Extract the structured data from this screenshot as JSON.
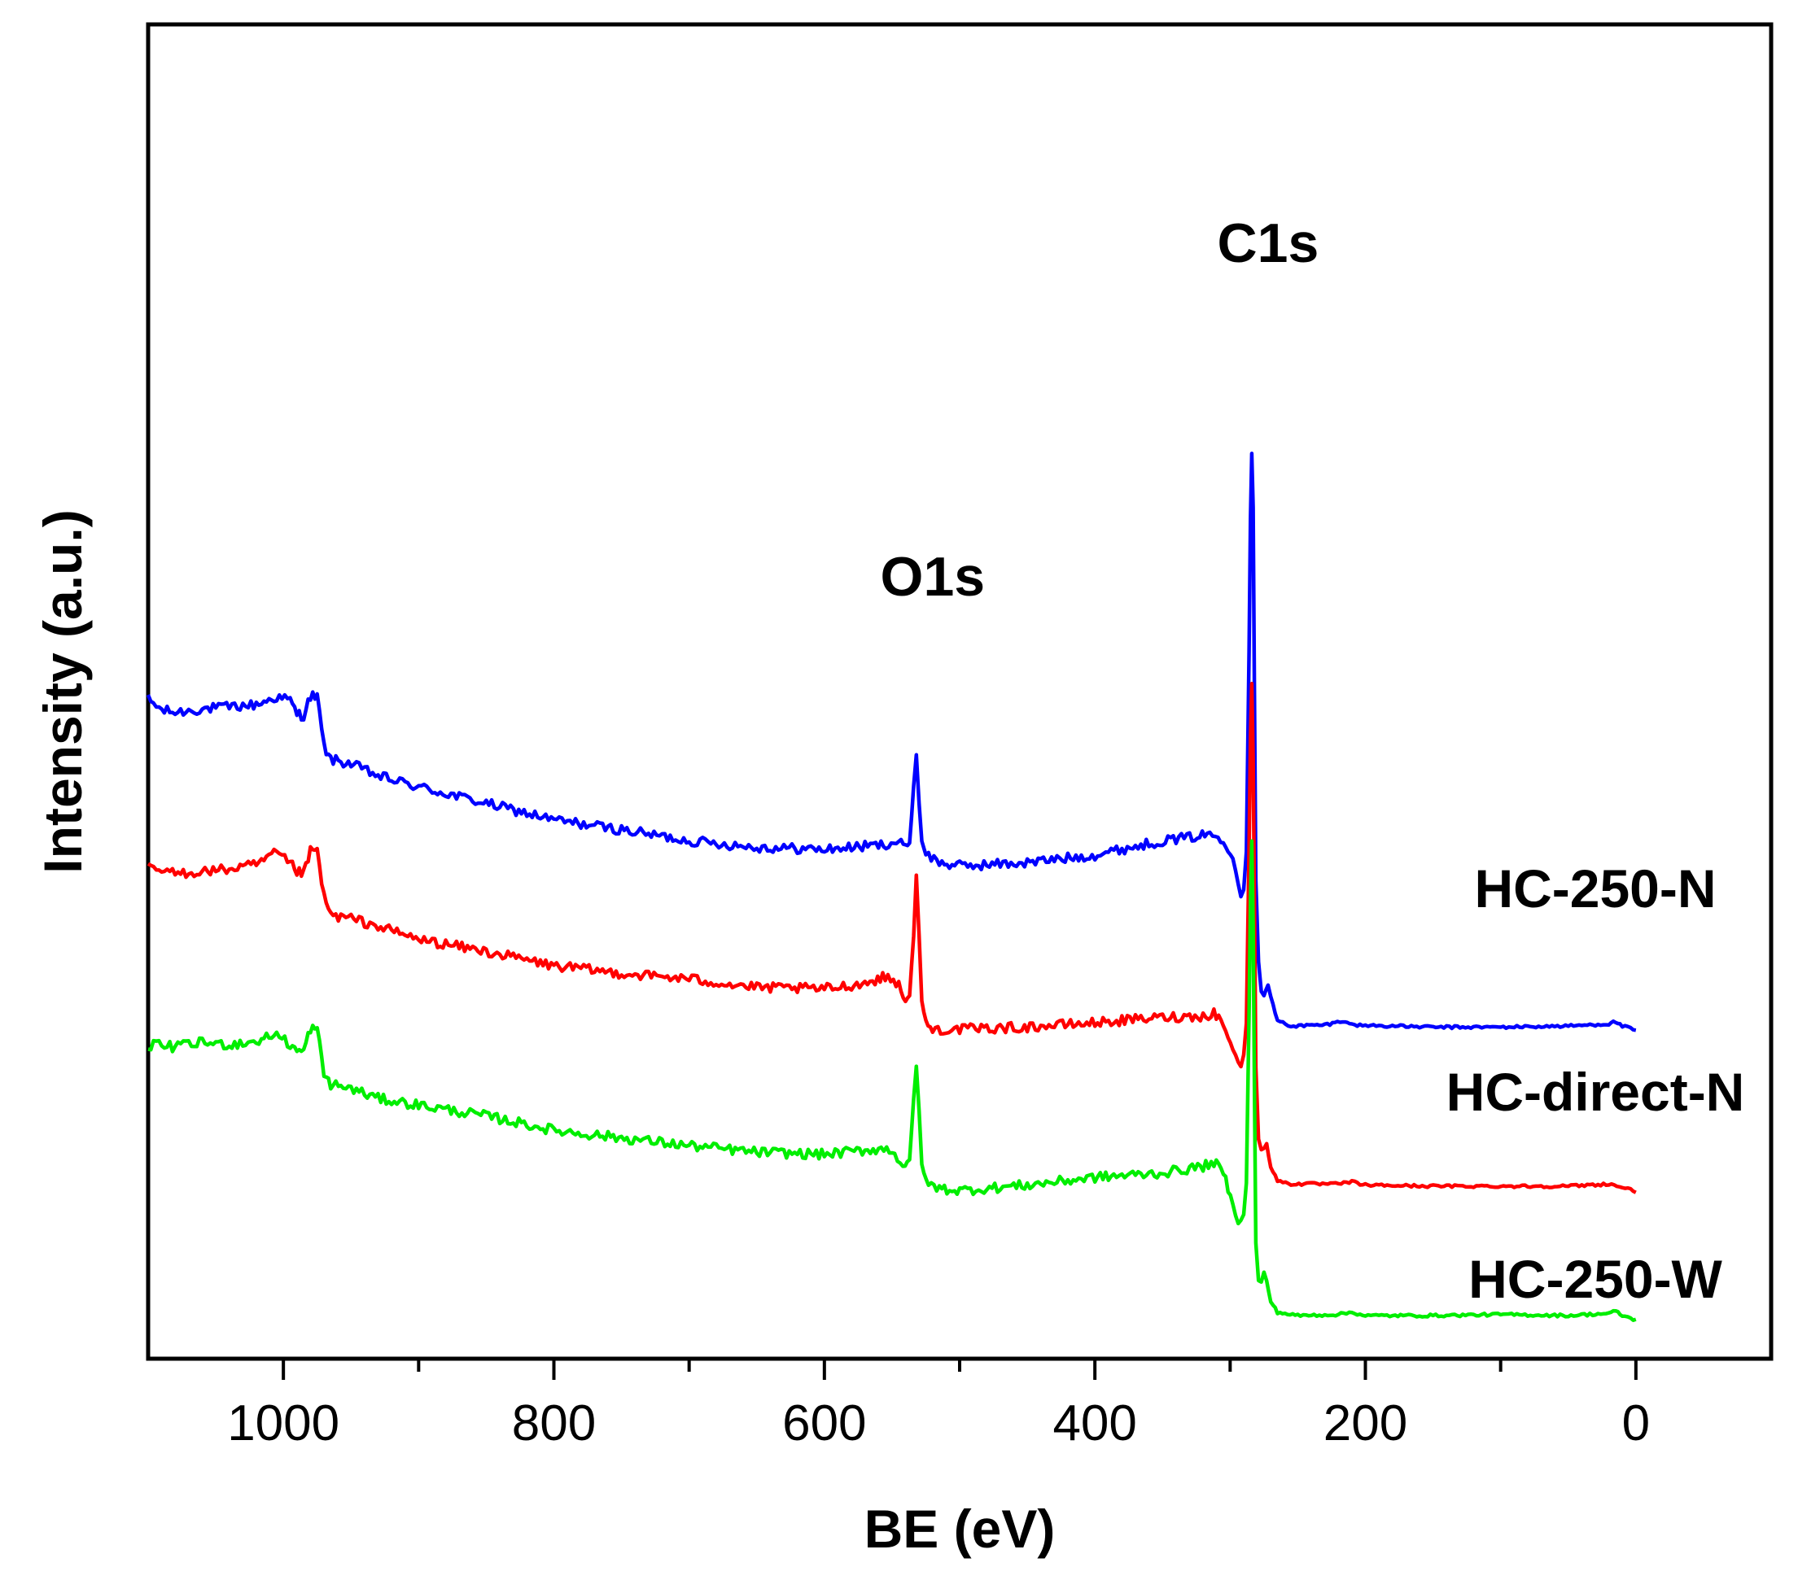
{
  "chart_data": {
    "type": "line",
    "xlabel": "BE (eV)",
    "ylabel": "Intensity (a.u.)",
    "x_reversed": true,
    "xlim": [
      1100,
      -100
    ],
    "ylim": [
      0,
      100
    ],
    "xticks": [
      1000,
      800,
      600,
      400,
      200,
      0
    ],
    "y_tick_labels": false,
    "grid": false,
    "legend": "none",
    "annotations": [
      {
        "text": "O1s",
        "x": 532
      },
      {
        "text": "C1s",
        "x": 284
      }
    ],
    "series": [
      {
        "name": "HC-250-N",
        "color": "#0000ff",
        "points": [
          [
            1100,
            58.5
          ],
          [
            1090,
            57.5
          ],
          [
            1080,
            57.3
          ],
          [
            1060,
            57.6
          ],
          [
            1040,
            57.8
          ],
          [
            1020,
            58.0
          ],
          [
            1005,
            58.7
          ],
          [
            995,
            58.4
          ],
          [
            990,
            57.2
          ],
          [
            985,
            57.0
          ],
          [
            980,
            58.8
          ],
          [
            975,
            58.7
          ],
          [
            970,
            54.2
          ],
          [
            965,
            53.0
          ],
          [
            950,
            52.6
          ],
          [
            930,
            51.5
          ],
          [
            900,
            50.5
          ],
          [
            850,
            49.0
          ],
          [
            800,
            47.5
          ],
          [
            750,
            46.6
          ],
          [
            700,
            45.6
          ],
          [
            650,
            45.0
          ],
          [
            600,
            44.8
          ],
          [
            560,
            45.2
          ],
          [
            545,
            45.5
          ],
          [
            540,
            45.1
          ],
          [
            537,
            45.4
          ],
          [
            534,
            50.5
          ],
          [
            532,
            53.5
          ],
          [
            530,
            49.0
          ],
          [
            528,
            45.6
          ],
          [
            525,
            44.4
          ],
          [
            515,
            43.6
          ],
          [
            500,
            43.3
          ],
          [
            450,
            43.6
          ],
          [
            400,
            44.3
          ],
          [
            350,
            45.6
          ],
          [
            330,
            45.9
          ],
          [
            315,
            46.2
          ],
          [
            305,
            45.8
          ],
          [
            298,
            44.0
          ],
          [
            292,
            40.6
          ],
          [
            290,
            41.2
          ],
          [
            288,
            44.5
          ],
          [
            286,
            63.0
          ],
          [
            285,
            75.0
          ],
          [
            284,
            81.0
          ],
          [
            283,
            76.0
          ],
          [
            282,
            59.0
          ],
          [
            281,
            42.0
          ],
          [
            279,
            34.5
          ],
          [
            277,
            31.8
          ],
          [
            275,
            31.5
          ],
          [
            272,
            32.5
          ],
          [
            270,
            31.3
          ],
          [
            265,
            29.2
          ],
          [
            255,
            28.7
          ],
          [
            230,
            28.8
          ],
          [
            215,
            29.2
          ],
          [
            210,
            28.8
          ],
          [
            150,
            28.6
          ],
          [
            100,
            28.6
          ],
          [
            50,
            28.7
          ],
          [
            20,
            28.9
          ],
          [
            15,
            29.1
          ],
          [
            10,
            28.7
          ],
          [
            0,
            28.3
          ]
        ]
      },
      {
        "name": "HC-direct-N",
        "color": "#ff0000",
        "points": [
          [
            1100,
            43.1
          ],
          [
            1080,
            42.6
          ],
          [
            1060,
            42.8
          ],
          [
            1040,
            43.0
          ],
          [
            1020,
            43.4
          ],
          [
            1005,
            44.5
          ],
          [
            995,
            43.5
          ],
          [
            990,
            42.8
          ],
          [
            985,
            42.6
          ],
          [
            980,
            44.6
          ],
          [
            975,
            44.7
          ],
          [
            970,
            40.5
          ],
          [
            965,
            38.8
          ],
          [
            950,
            38.5
          ],
          [
            930,
            37.8
          ],
          [
            900,
            36.6
          ],
          [
            850,
            35.5
          ],
          [
            800,
            34.2
          ],
          [
            750,
            33.5
          ],
          [
            700,
            33.0
          ],
          [
            650,
            32.2
          ],
          [
            600,
            32.1
          ],
          [
            570,
            32.6
          ],
          [
            555,
            33.2
          ],
          [
            545,
            32.6
          ],
          [
            540,
            31.0
          ],
          [
            537,
            31.4
          ],
          [
            534,
            37.0
          ],
          [
            532,
            42.4
          ],
          [
            530,
            37.0
          ],
          [
            528,
            31.0
          ],
          [
            525,
            28.9
          ],
          [
            520,
            28.4
          ],
          [
            500,
            28.4
          ],
          [
            450,
            28.6
          ],
          [
            400,
            29.0
          ],
          [
            350,
            29.5
          ],
          [
            320,
            29.6
          ],
          [
            312,
            29.9
          ],
          [
            305,
            29.0
          ],
          [
            298,
            26.5
          ],
          [
            292,
            25.0
          ],
          [
            290,
            26.0
          ],
          [
            288,
            29.0
          ],
          [
            286,
            45.0
          ],
          [
            285,
            55.0
          ],
          [
            284,
            60.0
          ],
          [
            283,
            53.0
          ],
          [
            282,
            40.0
          ],
          [
            281,
            25.0
          ],
          [
            279,
            18.5
          ],
          [
            277,
            17.5
          ],
          [
            275,
            17.6
          ],
          [
            273,
            18.0
          ],
          [
            270,
            15.8
          ],
          [
            265,
            14.6
          ],
          [
            255,
            14.3
          ],
          [
            220,
            14.3
          ],
          [
            210,
            14.5
          ],
          [
            200,
            14.2
          ],
          [
            150,
            14.1
          ],
          [
            100,
            14.1
          ],
          [
            50,
            14.1
          ],
          [
            20,
            14.3
          ],
          [
            10,
            14.0
          ],
          [
            0,
            13.6
          ]
        ]
      },
      {
        "name": "HC-250-W",
        "color": "#00ee00",
        "points": [
          [
            1100,
            27.0
          ],
          [
            1080,
            26.8
          ],
          [
            1060,
            27.2
          ],
          [
            1040,
            27.0
          ],
          [
            1020,
            27.3
          ],
          [
            1005,
            28.0
          ],
          [
            995,
            27.0
          ],
          [
            990,
            26.4
          ],
          [
            985,
            26.4
          ],
          [
            980,
            28.5
          ],
          [
            975,
            28.4
          ],
          [
            970,
            24.3
          ],
          [
            965,
            23.4
          ],
          [
            950,
            23.0
          ],
          [
            930,
            22.1
          ],
          [
            900,
            21.5
          ],
          [
            850,
            20.5
          ],
          [
            800,
            19.2
          ],
          [
            750,
            18.5
          ],
          [
            700,
            17.8
          ],
          [
            650,
            17.2
          ],
          [
            600,
            17.0
          ],
          [
            560,
            17.5
          ],
          [
            550,
            17.4
          ],
          [
            542,
            16.0
          ],
          [
            537,
            16.4
          ],
          [
            534,
            22.0
          ],
          [
            532,
            25.0
          ],
          [
            530,
            21.0
          ],
          [
            528,
            16.2
          ],
          [
            525,
            14.4
          ],
          [
            515,
            13.9
          ],
          [
            500,
            13.7
          ],
          [
            450,
            14.2
          ],
          [
            400,
            14.9
          ],
          [
            350,
            15.3
          ],
          [
            320,
            15.9
          ],
          [
            312,
            16.3
          ],
          [
            305,
            15.3
          ],
          [
            298,
            12.5
          ],
          [
            294,
            10.6
          ],
          [
            290,
            11.6
          ],
          [
            288,
            14.5
          ],
          [
            286,
            30.0
          ],
          [
            285,
            40.0
          ],
          [
            284,
            45.5
          ],
          [
            283,
            38.0
          ],
          [
            282,
            23.0
          ],
          [
            281,
            9.0
          ],
          [
            279,
            5.5
          ],
          [
            277,
            5.3
          ],
          [
            275,
            6.2
          ],
          [
            273,
            5.4
          ],
          [
            270,
            3.6
          ],
          [
            265,
            2.6
          ],
          [
            250,
            2.3
          ],
          [
            220,
            2.4
          ],
          [
            210,
            2.6
          ],
          [
            200,
            2.3
          ],
          [
            150,
            2.3
          ],
          [
            100,
            2.4
          ],
          [
            50,
            2.3
          ],
          [
            20,
            2.5
          ],
          [
            15,
            2.7
          ],
          [
            10,
            2.3
          ],
          [
            0,
            1.9
          ]
        ]
      }
    ]
  }
}
